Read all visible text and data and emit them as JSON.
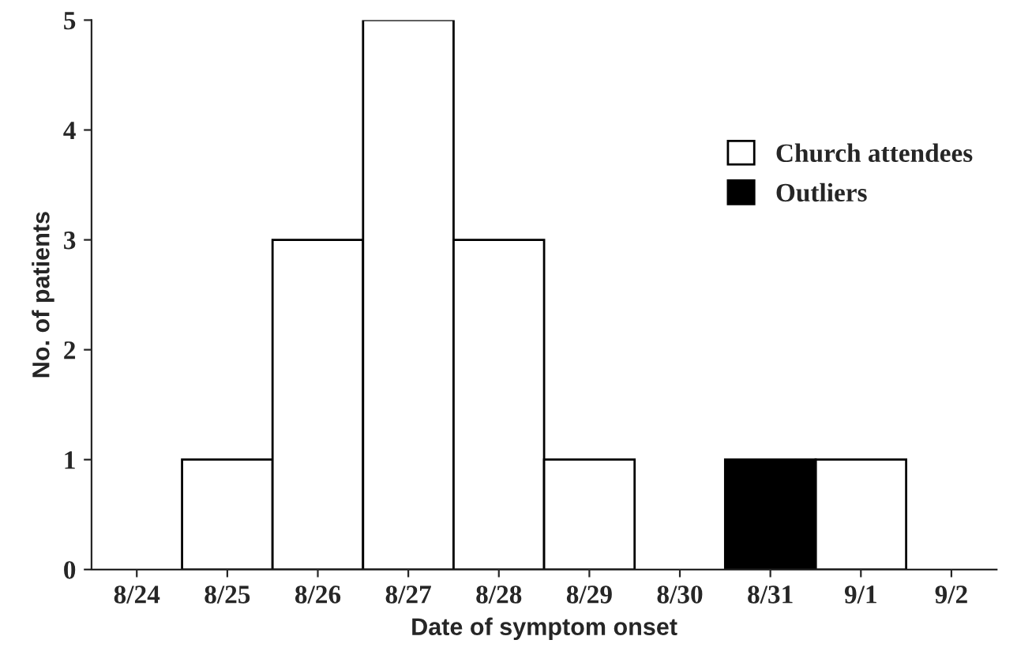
{
  "chart_data": {
    "type": "bar",
    "xlabel": "Date of symptom onset",
    "ylabel": "No. of patients",
    "categories": [
      "8/24",
      "8/25",
      "8/26",
      "8/27",
      "8/28",
      "8/29",
      "8/30",
      "8/31",
      "9/1",
      "9/2"
    ],
    "series": [
      {
        "name": "Church attendees",
        "color": "#ffffff",
        "values": [
          null,
          1,
          3,
          5,
          3,
          1,
          null,
          null,
          1,
          null
        ]
      },
      {
        "name": "Outliers",
        "color": "#000000",
        "values": [
          null,
          null,
          null,
          null,
          null,
          null,
          null,
          1,
          null,
          null
        ]
      }
    ],
    "ylim": [
      0,
      5
    ],
    "yticks": [
      0,
      1,
      2,
      3,
      4,
      5
    ],
    "grid": false,
    "legend": "right"
  }
}
